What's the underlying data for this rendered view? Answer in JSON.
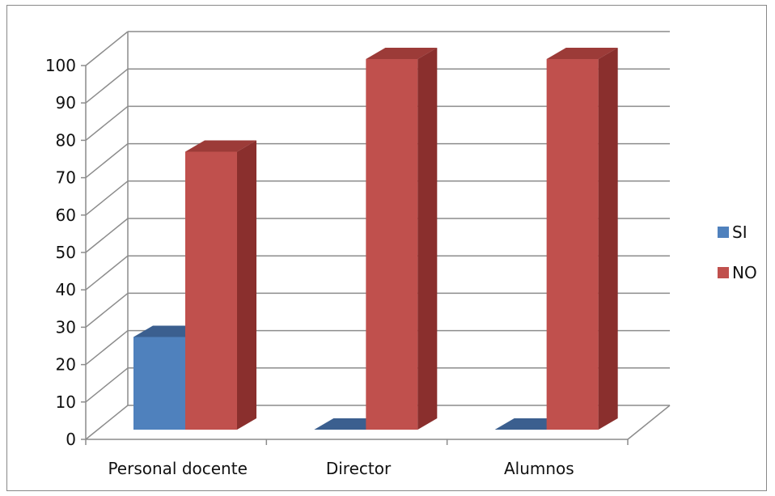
{
  "chart_data": {
    "type": "bar",
    "style": "3d-clustered-column",
    "categories": [
      "Personal docente",
      "Director",
      "Alumnos"
    ],
    "series": [
      {
        "name": "SI",
        "values": [
          25,
          0,
          0
        ],
        "color": "#4f81bd",
        "top_color": "#3b5f8f",
        "side_color": "#2f4f78"
      },
      {
        "name": "NO",
        "values": [
          75,
          100,
          100
        ],
        "color": "#c0504d",
        "top_color": "#9c3b38",
        "side_color": "#8a2f2d"
      }
    ],
    "ylim": [
      0,
      100
    ],
    "yticks": [
      0,
      10,
      20,
      30,
      40,
      50,
      60,
      70,
      80,
      90,
      100
    ],
    "grid": true,
    "legend": "right"
  }
}
